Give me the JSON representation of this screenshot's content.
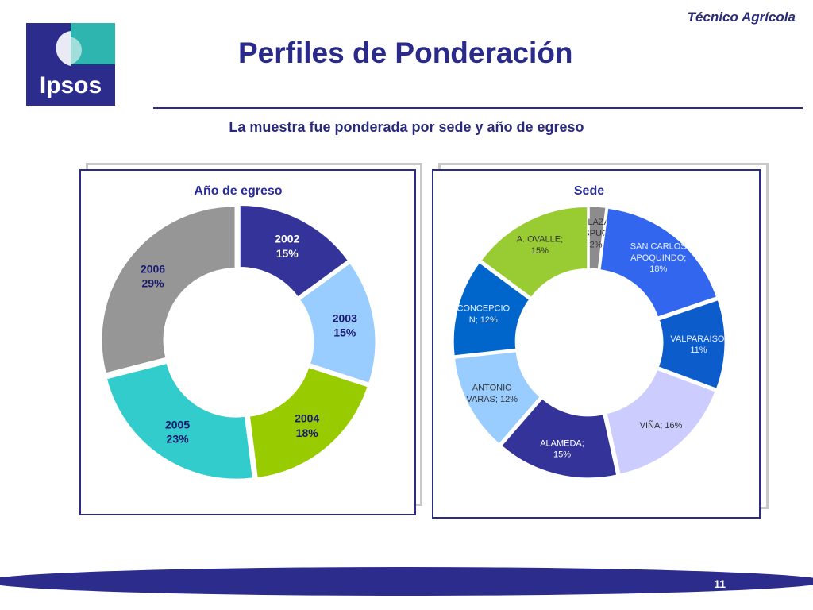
{
  "header": {
    "logo_text": "Ipsos",
    "category": "Técnico Agrícola",
    "title": "Perfiles de Ponderación",
    "subtitle": "La muestra fue ponderada por sede y año de egreso"
  },
  "footer": {
    "page_number": "11"
  },
  "colors": {
    "brand": "#2c2c8c",
    "accent": "#2c2c80"
  },
  "chart_data": [
    {
      "type": "pie",
      "style": "donut",
      "title": "Año de egreso",
      "categories": [
        "2002",
        "2003",
        "2004",
        "2005",
        "2006"
      ],
      "values": [
        15,
        15,
        18,
        23,
        29
      ],
      "value_labels": [
        "15%",
        "15%",
        "18%",
        "23%",
        "29%"
      ],
      "colors": [
        "#33339a",
        "#99ccff",
        "#99cc00",
        "#33cccc",
        "#969696"
      ],
      "label_colors": [
        "#ffffff",
        "#1a1a6e",
        "#1a1a6e",
        "#1a1a6e",
        "#1a1a6e"
      ]
    },
    {
      "type": "pie",
      "style": "donut",
      "title": "Sede",
      "categories": [
        "PLAZA VESPUCIO",
        "SAN CARLOS APOQUINDO",
        "VALPARAISO",
        "VIÑA",
        "ALAMEDA",
        "ANTONIO VARAS",
        "CONCEPCION",
        "A. OVALLE"
      ],
      "values": [
        2,
        18,
        11,
        16,
        15,
        12,
        12,
        15
      ],
      "label_lines": [
        [
          "PLAZA",
          "VESPUCIO;",
          "2%"
        ],
        [
          "SAN CARLOS",
          "APOQUINDO;",
          "18%"
        ],
        [
          "VALPARAISO;",
          "11%"
        ],
        [
          "VIÑA; 16%"
        ],
        [
          "ALAMEDA;",
          "15%"
        ],
        [
          "ANTONIO",
          "VARAS; 12%"
        ],
        [
          "CONCEPCIO",
          "N; 12%"
        ],
        [
          "A. OVALLE;",
          "15%"
        ]
      ],
      "colors": [
        "#8c8c8c",
        "#3366ee",
        "#0c5ccc",
        "#ccccff",
        "#33339a",
        "#99ccff",
        "#0066cc",
        "#99cc33"
      ],
      "label_colors": [
        "#333333",
        "#e8eeff",
        "#e8eeff",
        "#333333",
        "#ffffff",
        "#333333",
        "#e8eeff",
        "#333333"
      ]
    }
  ]
}
